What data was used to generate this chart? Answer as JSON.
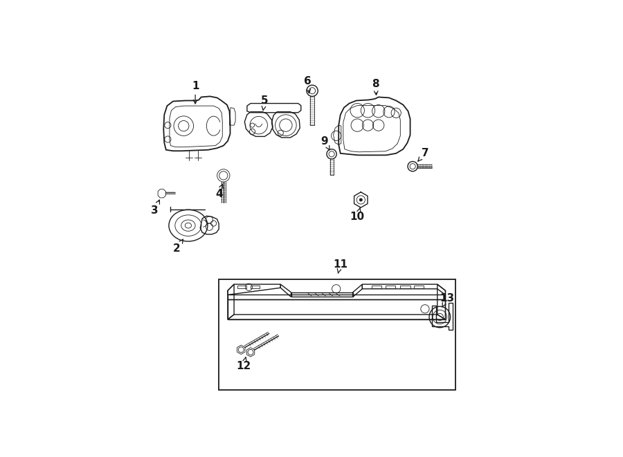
{
  "bg_color": "#ffffff",
  "line_color": "#1a1a1a",
  "label_fontsize": 11,
  "lw": 1.0,
  "lw_thin": 0.6,
  "lw_thick": 1.3,
  "labels": {
    "1": [
      0.148,
      0.888,
      0.148,
      0.853
    ],
    "2": [
      0.098,
      0.455,
      0.115,
      0.478
    ],
    "3": [
      0.038,
      0.565,
      0.05,
      0.592
    ],
    "4": [
      0.228,
      0.605,
      0.228,
      0.638
    ],
    "5": [
      0.348,
      0.862,
      0.34,
      0.84
    ],
    "6": [
      0.472,
      0.912,
      0.472,
      0.883
    ],
    "7": [
      0.79,
      0.71,
      0.775,
      0.692
    ],
    "8": [
      0.662,
      0.908,
      0.662,
      0.878
    ],
    "9": [
      0.52,
      0.748,
      0.533,
      0.723
    ],
    "10": [
      0.618,
      0.545,
      0.618,
      0.57
    ],
    "11": [
      0.56,
      0.398,
      0.553,
      0.378
    ],
    "12": [
      0.288,
      0.118,
      0.295,
      0.148
    ],
    "13": [
      0.858,
      0.3,
      0.85,
      0.28
    ]
  }
}
